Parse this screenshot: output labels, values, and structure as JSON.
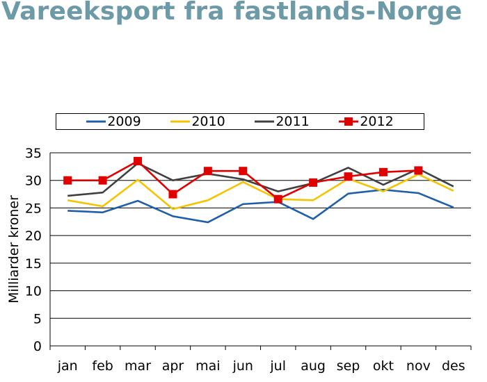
{
  "title": "Vareeksport fra fastlands-Norge",
  "chart_data": {
    "type": "line",
    "categories": [
      "jan",
      "feb",
      "mar",
      "apr",
      "mai",
      "jun",
      "jul",
      "aug",
      "sep",
      "okt",
      "nov",
      "des"
    ],
    "ylabel": "Milliarder kroner",
    "xlabel": "",
    "ylim": [
      0,
      35
    ],
    "yticks": [
      0,
      5,
      10,
      15,
      20,
      25,
      30,
      35
    ],
    "grid": "horizontal",
    "legend_position": "top",
    "series": [
      {
        "name": "2009",
        "color": "#1f5faa",
        "marker": "none",
        "values": [
          24.5,
          24.2,
          26.3,
          23.5,
          22.4,
          25.7,
          26.1,
          23.0,
          27.6,
          28.3,
          27.7,
          25.1
        ]
      },
      {
        "name": "2010",
        "color": "#f5c400",
        "marker": "none",
        "values": [
          26.4,
          25.3,
          30.1,
          24.8,
          26.4,
          29.7,
          26.6,
          26.4,
          30.3,
          28.0,
          31.1,
          28.1
        ]
      },
      {
        "name": "2011",
        "color": "#404040",
        "marker": "none",
        "values": [
          27.2,
          27.8,
          33.1,
          30.0,
          31.2,
          30.2,
          28.0,
          29.5,
          32.3,
          29.2,
          32.1,
          28.9
        ]
      },
      {
        "name": "2012",
        "color": "#e00000",
        "marker": "square",
        "values": [
          30.0,
          30.0,
          33.5,
          27.5,
          31.7,
          31.7,
          26.6,
          29.6,
          30.7,
          31.5,
          31.8,
          null
        ]
      }
    ]
  }
}
